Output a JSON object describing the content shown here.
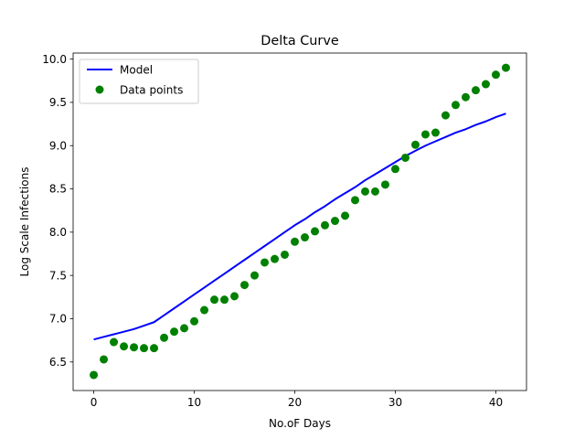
{
  "chart_data": {
    "type": "line",
    "title": "Delta Curve",
    "xlabel": "No.oF Days",
    "ylabel": "Log Scale Infections",
    "xlim": [
      -2.05,
      43.05
    ],
    "ylim": [
      6.17,
      10.07
    ],
    "x_ticks": [
      0,
      10,
      20,
      30,
      40
    ],
    "y_ticks": [
      6.5,
      7.0,
      7.5,
      8.0,
      8.5,
      9.0,
      9.5,
      10.0
    ],
    "grid": false,
    "legend_position": "upper left",
    "series": [
      {
        "name": "Model",
        "kind": "line",
        "color": "#0000ff",
        "x": [
          0,
          1,
          2,
          3,
          4,
          5,
          6,
          7,
          8,
          9,
          10,
          11,
          12,
          13,
          14,
          15,
          16,
          17,
          18,
          19,
          20,
          21,
          22,
          23,
          24,
          25,
          26,
          27,
          28,
          29,
          30,
          31,
          32,
          33,
          34,
          35,
          36,
          37,
          38,
          39,
          40,
          41
        ],
        "y": [
          6.76,
          6.79,
          6.82,
          6.85,
          6.88,
          6.92,
          6.96,
          7.04,
          7.12,
          7.2,
          7.28,
          7.36,
          7.44,
          7.52,
          7.6,
          7.68,
          7.76,
          7.84,
          7.92,
          8.0,
          8.08,
          8.15,
          8.23,
          8.3,
          8.38,
          8.45,
          8.52,
          8.6,
          8.67,
          8.74,
          8.81,
          8.88,
          8.94,
          9.0,
          9.05,
          9.1,
          9.15,
          9.19,
          9.24,
          9.28,
          9.33,
          9.37
        ]
      },
      {
        "name": "Data points",
        "kind": "scatter",
        "color": "#008000",
        "x": [
          0,
          1,
          2,
          3,
          4,
          5,
          6,
          7,
          8,
          9,
          10,
          11,
          12,
          13,
          14,
          15,
          16,
          17,
          18,
          19,
          20,
          21,
          22,
          23,
          24,
          25,
          26,
          27,
          28,
          29,
          30,
          31,
          32,
          33,
          34,
          35,
          36,
          37,
          38,
          39,
          40,
          41
        ],
        "y": [
          6.35,
          6.53,
          6.73,
          6.68,
          6.67,
          6.66,
          6.66,
          6.78,
          6.85,
          6.89,
          6.97,
          7.1,
          7.22,
          7.22,
          7.26,
          7.39,
          7.5,
          7.65,
          7.69,
          7.74,
          7.89,
          7.94,
          8.01,
          8.08,
          8.13,
          8.19,
          8.37,
          8.47,
          8.47,
          8.55,
          8.73,
          8.86,
          9.01,
          9.13,
          9.15,
          9.35,
          9.47,
          9.56,
          9.64,
          9.71,
          9.82,
          9.9
        ]
      }
    ]
  }
}
